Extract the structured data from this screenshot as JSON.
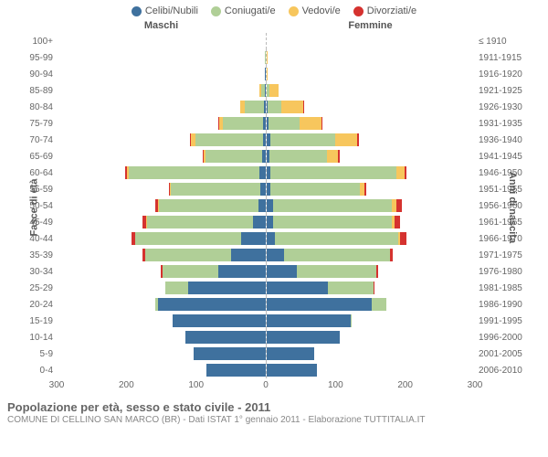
{
  "chart": {
    "type": "population-pyramid",
    "x_max": 300,
    "x_ticks": [
      0,
      100,
      200,
      300
    ],
    "colors": {
      "single": "#3f719e",
      "married": "#b0cf97",
      "widowed": "#f7c65d",
      "divorced": "#d5322f",
      "grid": "#eeeeee",
      "axis_text": "#666666",
      "background": "#ffffff"
    },
    "legend": [
      {
        "label": "Celibi/Nubili",
        "color_key": "single"
      },
      {
        "label": "Coniugati/e",
        "color_key": "married"
      },
      {
        "label": "Vedovi/e",
        "color_key": "widowed"
      },
      {
        "label": "Divorziati/e",
        "color_key": "divorced"
      }
    ],
    "header_male": "Maschi",
    "header_female": "Femmine",
    "y_title_left": "Fasce di età",
    "y_title_right": "Anni di nascita",
    "categories": [
      {
        "age": "100+",
        "birth": "≤ 1910"
      },
      {
        "age": "95-99",
        "birth": "1911-1915"
      },
      {
        "age": "90-94",
        "birth": "1916-1920"
      },
      {
        "age": "85-89",
        "birth": "1921-1925"
      },
      {
        "age": "80-84",
        "birth": "1926-1930"
      },
      {
        "age": "75-79",
        "birth": "1931-1935"
      },
      {
        "age": "70-74",
        "birth": "1936-1940"
      },
      {
        "age": "65-69",
        "birth": "1941-1945"
      },
      {
        "age": "60-64",
        "birth": "1946-1950"
      },
      {
        "age": "55-59",
        "birth": "1951-1955"
      },
      {
        "age": "50-54",
        "birth": "1956-1960"
      },
      {
        "age": "45-49",
        "birth": "1961-1965"
      },
      {
        "age": "40-44",
        "birth": "1966-1970"
      },
      {
        "age": "35-39",
        "birth": "1971-1975"
      },
      {
        "age": "30-34",
        "birth": "1976-1980"
      },
      {
        "age": "25-29",
        "birth": "1981-1985"
      },
      {
        "age": "20-24",
        "birth": "1986-1990"
      },
      {
        "age": "15-19",
        "birth": "1991-1995"
      },
      {
        "age": "10-14",
        "birth": "1996-2000"
      },
      {
        "age": "5-9",
        "birth": "2001-2005"
      },
      {
        "age": "0-4",
        "birth": "2006-2010"
      }
    ],
    "male": [
      {
        "single": 0,
        "married": 0,
        "widowed": 2,
        "divorced": 0
      },
      {
        "single": 0,
        "married": 2,
        "widowed": 3,
        "divorced": 0
      },
      {
        "single": 2,
        "married": 6,
        "widowed": 6,
        "divorced": 0
      },
      {
        "single": 4,
        "married": 32,
        "widowed": 14,
        "divorced": 0
      },
      {
        "single": 6,
        "married": 80,
        "widowed": 18,
        "divorced": 0
      },
      {
        "single": 6,
        "married": 122,
        "widowed": 12,
        "divorced": 2
      },
      {
        "single": 6,
        "married": 162,
        "widowed": 10,
        "divorced": 2
      },
      {
        "single": 8,
        "married": 150,
        "widowed": 4,
        "divorced": 2
      },
      {
        "single": 10,
        "married": 230,
        "widowed": 3,
        "divorced": 3
      },
      {
        "single": 10,
        "married": 190,
        "widowed": 2,
        "divorced": 2
      },
      {
        "single": 14,
        "married": 196,
        "widowed": 2,
        "divorced": 6
      },
      {
        "single": 24,
        "married": 198,
        "widowed": 2,
        "divorced": 6
      },
      {
        "single": 44,
        "married": 190,
        "widowed": 0,
        "divorced": 6
      },
      {
        "single": 64,
        "married": 162,
        "widowed": 0,
        "divorced": 4
      },
      {
        "single": 96,
        "married": 114,
        "widowed": 0,
        "divorced": 2
      },
      {
        "single": 160,
        "married": 48,
        "widowed": 0,
        "divorced": 0
      },
      {
        "single": 212,
        "married": 6,
        "widowed": 0,
        "divorced": 0
      },
      {
        "single": 200,
        "married": 0,
        "widowed": 0,
        "divorced": 0
      },
      {
        "single": 186,
        "married": 0,
        "widowed": 0,
        "divorced": 0
      },
      {
        "single": 176,
        "married": 0,
        "widowed": 0,
        "divorced": 0
      },
      {
        "single": 160,
        "married": 0,
        "widowed": 0,
        "divorced": 0
      }
    ],
    "female": [
      {
        "single": 0,
        "married": 0,
        "widowed": 3,
        "divorced": 0
      },
      {
        "single": 0,
        "married": 0,
        "widowed": 6,
        "divorced": 0
      },
      {
        "single": 2,
        "married": 2,
        "widowed": 20,
        "divorced": 0
      },
      {
        "single": 4,
        "married": 14,
        "widowed": 56,
        "divorced": 0
      },
      {
        "single": 6,
        "married": 44,
        "widowed": 76,
        "divorced": 2
      },
      {
        "single": 6,
        "married": 86,
        "widowed": 62,
        "divorced": 2
      },
      {
        "single": 8,
        "married": 140,
        "widowed": 48,
        "divorced": 4
      },
      {
        "single": 8,
        "married": 140,
        "widowed": 26,
        "divorced": 4
      },
      {
        "single": 8,
        "married": 220,
        "widowed": 14,
        "divorced": 4
      },
      {
        "single": 8,
        "married": 186,
        "widowed": 10,
        "divorced": 4
      },
      {
        "single": 12,
        "married": 212,
        "widowed": 8,
        "divorced": 10
      },
      {
        "single": 12,
        "married": 214,
        "widowed": 4,
        "divorced": 10
      },
      {
        "single": 16,
        "married": 216,
        "widowed": 2,
        "divorced": 12
      },
      {
        "single": 32,
        "married": 196,
        "widowed": 0,
        "divorced": 6
      },
      {
        "single": 60,
        "married": 156,
        "widowed": 0,
        "divorced": 4
      },
      {
        "single": 124,
        "married": 90,
        "widowed": 0,
        "divorced": 2
      },
      {
        "single": 200,
        "married": 28,
        "widowed": 0,
        "divorced": 0
      },
      {
        "single": 190,
        "married": 2,
        "widowed": 0,
        "divorced": 0
      },
      {
        "single": 178,
        "married": 0,
        "widowed": 0,
        "divorced": 0
      },
      {
        "single": 144,
        "married": 0,
        "widowed": 0,
        "divorced": 0
      },
      {
        "single": 148,
        "married": 0,
        "widowed": 0,
        "divorced": 0
      }
    ]
  },
  "caption": {
    "title": "Popolazione per età, sesso e stato civile - 2011",
    "sub": "COMUNE DI CELLINO SAN MARCO (BR) - Dati ISTAT 1° gennaio 2011 - Elaborazione TUTTITALIA.IT"
  }
}
